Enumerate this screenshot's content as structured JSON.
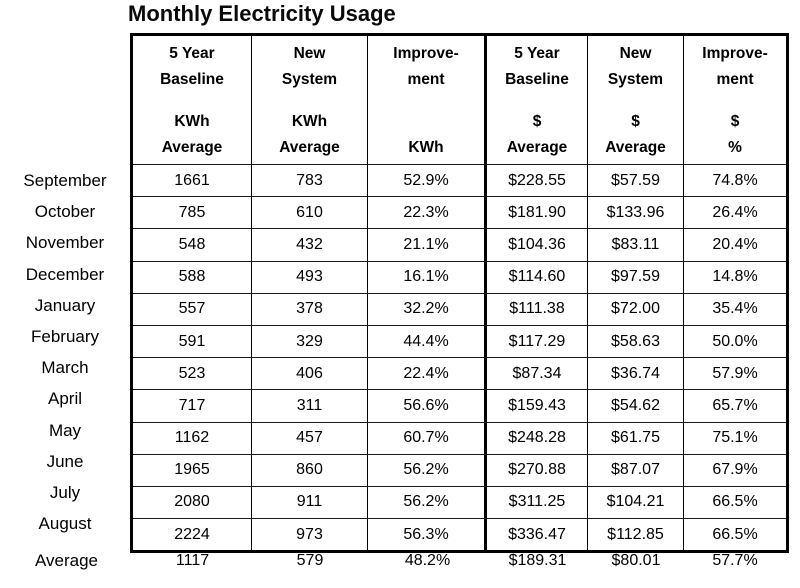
{
  "title": "Monthly Electricity Usage",
  "colors": {
    "background": "#ffffff",
    "text": "#000000",
    "border_thick": "#000000",
    "grid_line": "#1a1a1a"
  },
  "table": {
    "header_columns": [
      {
        "line1": "5 Year",
        "line2": "Baseline",
        "line3": "KWh",
        "line4": "Average"
      },
      {
        "line1": "New",
        "line2": "System",
        "line3": "KWh",
        "line4": "Average"
      },
      {
        "line1": "Improve-",
        "line2": "ment",
        "line3": "",
        "line4": "KWh"
      },
      {
        "line1": "5 Year",
        "line2": "Baseline",
        "line3": "$",
        "line4": "Average"
      },
      {
        "line1": "New",
        "line2": "System",
        "line3": "$",
        "line4": "Average"
      },
      {
        "line1": "Improve-",
        "line2": "ment",
        "line3": "$",
        "line4": "%"
      }
    ],
    "rows": [
      {
        "month": "September",
        "values": [
          "1661",
          "783",
          "52.9%",
          "$228.55",
          "$57.59",
          "74.8%"
        ]
      },
      {
        "month": "October",
        "values": [
          "785",
          "610",
          "22.3%",
          "$181.90",
          "$133.96",
          "26.4%"
        ]
      },
      {
        "month": "November",
        "values": [
          "548",
          "432",
          "21.1%",
          "$104.36",
          "$83.11",
          "20.4%"
        ]
      },
      {
        "month": "December",
        "values": [
          "588",
          "493",
          "16.1%",
          "$114.60",
          "$97.59",
          "14.8%"
        ]
      },
      {
        "month": "January",
        "values": [
          "557",
          "378",
          "32.2%",
          "$111.38",
          "$72.00",
          "35.4%"
        ]
      },
      {
        "month": "February",
        "values": [
          "591",
          "329",
          "44.4%",
          "$117.29",
          "$58.63",
          "50.0%"
        ]
      },
      {
        "month": "March",
        "values": [
          "523",
          "406",
          "22.4%",
          "$87.34",
          "$36.74",
          "57.9%"
        ]
      },
      {
        "month": "April",
        "values": [
          "717",
          "311",
          "56.6%",
          "$159.43",
          "$54.62",
          "65.7%"
        ]
      },
      {
        "month": "May",
        "values": [
          "1162",
          "457",
          "60.7%",
          "$248.28",
          "$61.75",
          "75.1%"
        ]
      },
      {
        "month": "June",
        "values": [
          "1965",
          "860",
          "56.2%",
          "$270.88",
          "$87.07",
          "67.9%"
        ]
      },
      {
        "month": "July",
        "values": [
          "2080",
          "911",
          "56.2%",
          "$311.25",
          "$104.21",
          "66.5%"
        ]
      },
      {
        "month": "August",
        "values": [
          "2224",
          "973",
          "56.3%",
          "$336.47",
          "$112.85",
          "66.5%"
        ]
      }
    ],
    "average_row": {
      "month": "Average",
      "values": [
        "1117",
        "579",
        "48.2%",
        "$189.31",
        "$80.01",
        "57.7%"
      ]
    }
  }
}
